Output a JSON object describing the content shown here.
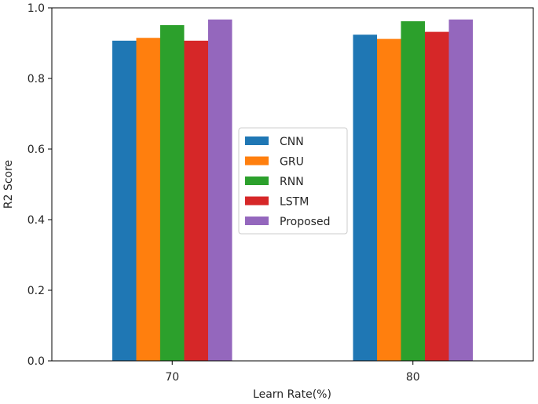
{
  "chart_data": {
    "type": "bar",
    "xlabel": "Learn Rate(%)",
    "ylabel": "R2 Score",
    "categories": [
      "70",
      "80"
    ],
    "ylim": [
      0.0,
      1.0
    ],
    "yticks": [
      "0.0",
      "0.2",
      "0.4",
      "0.6",
      "0.8",
      "1.0"
    ],
    "grid": false,
    "legend_position": "center",
    "series": [
      {
        "name": "CNN",
        "color": "#1f77b4",
        "values": [
          0.907,
          0.924
        ]
      },
      {
        "name": "GRU",
        "color": "#ff7f0e",
        "values": [
          0.915,
          0.912
        ]
      },
      {
        "name": "RNN",
        "color": "#2ca02c",
        "values": [
          0.951,
          0.962
        ]
      },
      {
        "name": "LSTM",
        "color": "#d62728",
        "values": [
          0.907,
          0.932
        ]
      },
      {
        "name": "Proposed",
        "color": "#9467bd",
        "values": [
          0.967,
          0.967
        ]
      }
    ]
  }
}
